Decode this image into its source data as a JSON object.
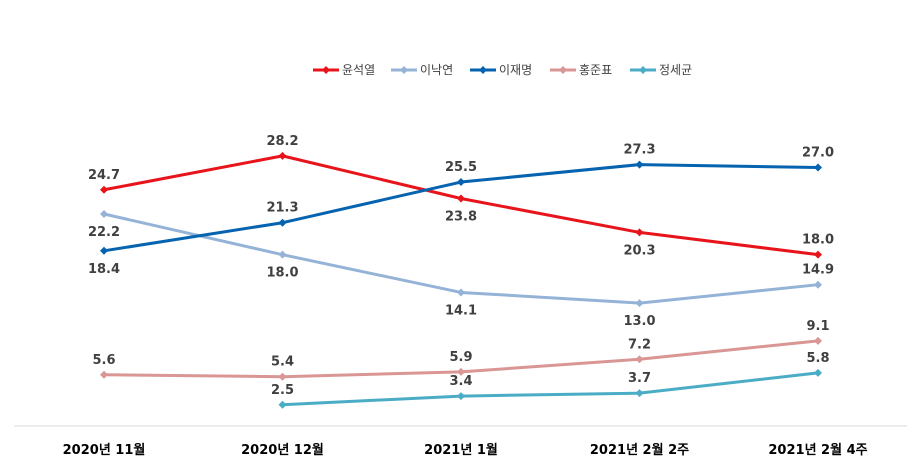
{
  "chart_data": {
    "type": "line",
    "title": "",
    "xlabel": "",
    "ylabel": "",
    "categories": [
      "2020년 11월",
      "2020년 12월",
      "2021년 1월",
      "2021년 2월 2주",
      "2021년 2월 4주"
    ],
    "ylim": [
      0,
      32
    ],
    "grid": false,
    "legend_position": "top",
    "series": [
      {
        "name": "윤석열",
        "color": "#e8141b",
        "values": [
          24.7,
          28.2,
          23.8,
          20.3,
          18.0
        ],
        "label_side": [
          "above",
          "above",
          "below",
          "below",
          "above"
        ]
      },
      {
        "name": "이낙연",
        "color": "#95b3d7",
        "values": [
          22.2,
          18.0,
          14.1,
          13.0,
          14.9
        ],
        "label_side": [
          "below",
          "below",
          "below",
          "below",
          "above"
        ]
      },
      {
        "name": "이재명",
        "color": "#0563b0",
        "values": [
          18.4,
          21.3,
          25.5,
          27.3,
          27.0
        ],
        "label_side": [
          "below",
          "above",
          "above",
          "above",
          "above"
        ]
      },
      {
        "name": "홍준표",
        "color": "#d99694",
        "values": [
          5.6,
          5.4,
          5.9,
          7.2,
          9.1
        ],
        "label_side": [
          "above",
          "above",
          "above",
          "above",
          "above"
        ]
      },
      {
        "name": "정세균",
        "color": "#4bacc6",
        "values": [
          null,
          2.5,
          3.4,
          3.7,
          5.8
        ],
        "label_side": [
          "above",
          "above",
          "above",
          "above",
          "above"
        ]
      }
    ]
  }
}
